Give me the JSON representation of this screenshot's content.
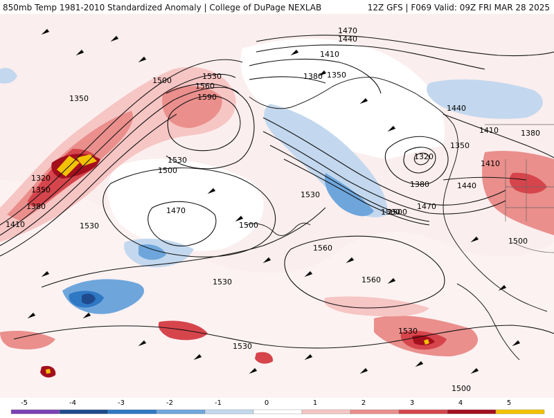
{
  "header": {
    "title_left": "850mb Temp 1981-2010 Standardized Anomaly | College of DuPage NEXLAB",
    "title_right": "12Z GFS | F069 Valid: 09Z FRI MAR 28 2025"
  },
  "map": {
    "contour_labels": [
      {
        "id": "c1",
        "text": "1470"
      },
      {
        "id": "c2",
        "text": "1440"
      },
      {
        "id": "c3",
        "text": "1410"
      },
      {
        "id": "c4",
        "text": "1380"
      },
      {
        "id": "c5",
        "text": "1350"
      },
      {
        "id": "c6",
        "text": "1530"
      },
      {
        "id": "c7",
        "text": "1500"
      },
      {
        "id": "c8",
        "text": "1560"
      },
      {
        "id": "c9",
        "text": "1590"
      },
      {
        "id": "c10",
        "text": "1350"
      },
      {
        "id": "c11",
        "text": "1320"
      },
      {
        "id": "c12",
        "text": "1350"
      },
      {
        "id": "c13",
        "text": "1380"
      },
      {
        "id": "c14",
        "text": "1410"
      },
      {
        "id": "c15",
        "text": "1530"
      },
      {
        "id": "c16",
        "text": "1500"
      },
      {
        "id": "c17",
        "text": "1470"
      },
      {
        "id": "c18",
        "text": "1530"
      },
      {
        "id": "c19",
        "text": "1500"
      },
      {
        "id": "c20",
        "text": "1530"
      },
      {
        "id": "c21",
        "text": "1560"
      },
      {
        "id": "c22",
        "text": "1560"
      },
      {
        "id": "c23",
        "text": "1530"
      },
      {
        "id": "c24",
        "text": "1530"
      },
      {
        "id": "c25",
        "text": "1530"
      },
      {
        "id": "c26",
        "text": "1500"
      },
      {
        "id": "c27",
        "text": "1440"
      },
      {
        "id": "c28",
        "text": "1410"
      },
      {
        "id": "c29",
        "text": "1380"
      },
      {
        "id": "c30",
        "text": "1350"
      },
      {
        "id": "c31",
        "text": "1320"
      },
      {
        "id": "c32",
        "text": "1380"
      },
      {
        "id": "c33",
        "text": "1440"
      },
      {
        "id": "c34",
        "text": "1470"
      },
      {
        "id": "c35",
        "text": "1500"
      },
      {
        "id": "c36",
        "text": "1410"
      },
      {
        "id": "c37",
        "text": "1500"
      }
    ]
  },
  "colorbar": {
    "ticks": [
      "-5",
      "-4",
      "-3",
      "-2",
      "-1",
      "0",
      "1",
      "2",
      "3",
      "4",
      "5"
    ],
    "colors": {
      "m5": "#7b3fb5",
      "m4": "#1f4a8c",
      "m3": "#2f78c4",
      "m2": "#6ea6dc",
      "m1": "#c3d8ee",
      "z": "#ffffff",
      "p1": "#f6c6c4",
      "p2": "#ea8f8c",
      "p3": "#d6454c",
      "p4": "#a40f1e",
      "p5": "#f2c200"
    }
  }
}
